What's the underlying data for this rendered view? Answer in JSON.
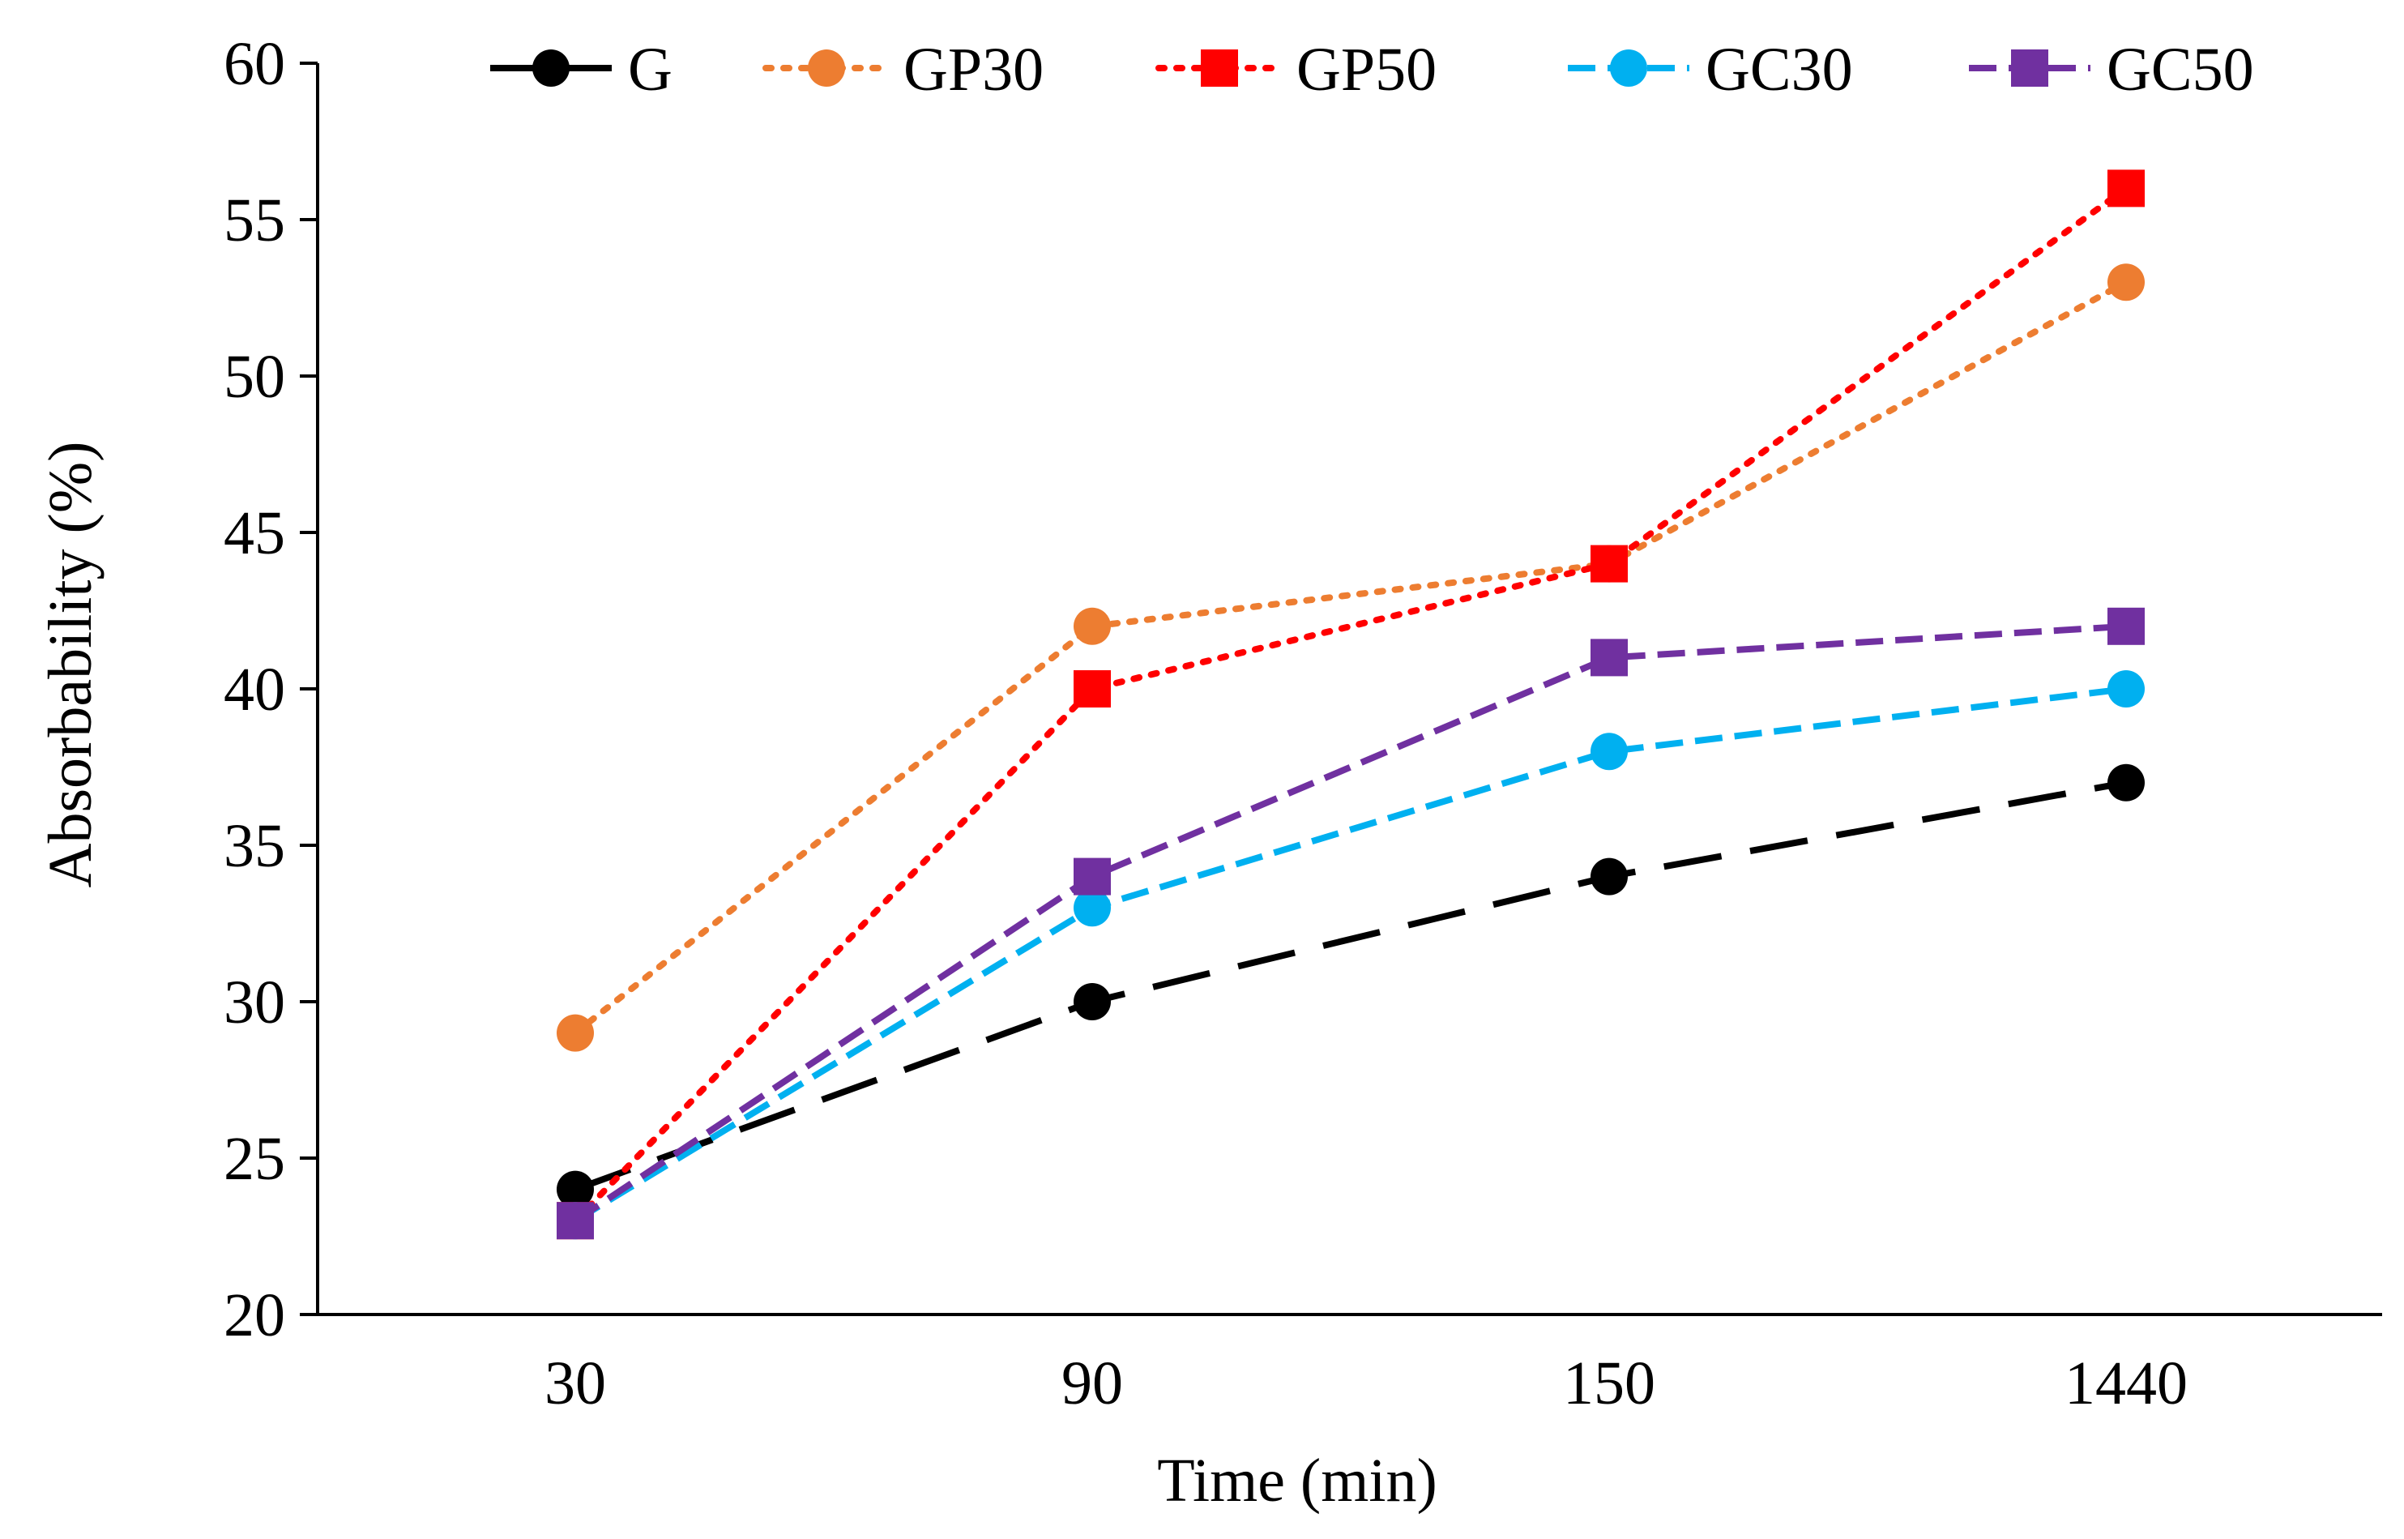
{
  "chart_data": {
    "type": "line",
    "title": "",
    "xlabel": "Time (min)",
    "ylabel": "Absorbability  (%)",
    "categories": [
      "30",
      "90",
      "150",
      "1440"
    ],
    "ylim": [
      20,
      60
    ],
    "yticks": [
      "20",
      "25",
      "30",
      "35",
      "40",
      "45",
      "50",
      "55",
      "60"
    ],
    "ytick_values": [
      20,
      25,
      30,
      35,
      40,
      45,
      50,
      55,
      60
    ],
    "grid": false,
    "legend_position": "top",
    "series": [
      {
        "name": "G",
        "values": [
          24,
          30,
          34,
          37
        ],
        "color": "#000000",
        "dash": "long-dash",
        "marker": "circle"
      },
      {
        "name": "GP30",
        "values": [
          29,
          42,
          44,
          53
        ],
        "color": "#ED7D31",
        "dash": "dot",
        "marker": "circle"
      },
      {
        "name": "GP50",
        "values": [
          23,
          40,
          44,
          56
        ],
        "color": "#FF0000",
        "dash": "dot",
        "marker": "square"
      },
      {
        "name": "GC30",
        "values": [
          23,
          33,
          38,
          40
        ],
        "color": "#00B0F0",
        "dash": "dash",
        "marker": "circle"
      },
      {
        "name": "GC50",
        "values": [
          23,
          34,
          41,
          42
        ],
        "color": "#7030A0",
        "dash": "dash",
        "marker": "square"
      }
    ]
  }
}
